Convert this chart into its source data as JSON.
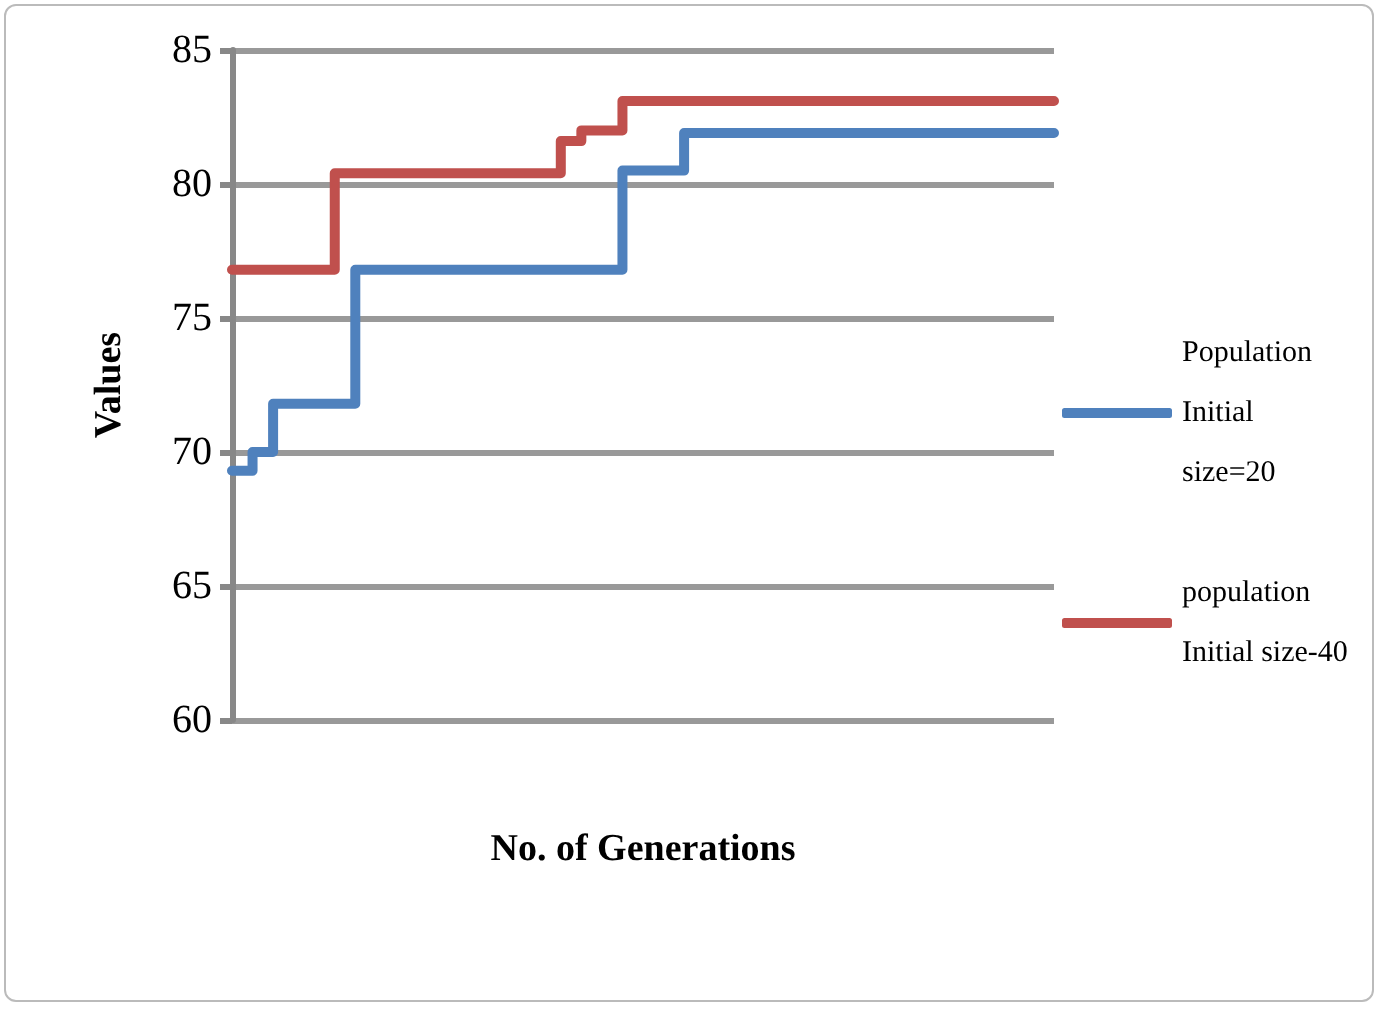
{
  "chart_data": {
    "type": "step",
    "xlabel": "No. of Generations",
    "ylabel": "Values",
    "categories": [
      null,
      null,
      null,
      null,
      null,
      null,
      null,
      null,
      null,
      null,
      null,
      null,
      null,
      null,
      null,
      null,
      null,
      null,
      null,
      null,
      null,
      null,
      null,
      null,
      null,
      null,
      null,
      null,
      null,
      null,
      null,
      null,
      null,
      null,
      null,
      null,
      null,
      null,
      null,
      null,
      null
    ],
    "series": [
      {
        "name": "Population Initial size=20",
        "color": "#4f81bd",
        "values": [
          69.3,
          70.0,
          71.8,
          71.8,
          71.8,
          71.8,
          76.8,
          76.8,
          76.8,
          76.8,
          76.8,
          76.8,
          76.8,
          76.8,
          76.8,
          76.8,
          76.8,
          76.8,
          76.8,
          80.5,
          80.5,
          80.5,
          81.9,
          81.9,
          81.9,
          81.9,
          81.9,
          81.9,
          81.9,
          81.9,
          81.9,
          81.9,
          81.9,
          81.9,
          81.9,
          81.9,
          81.9,
          81.9,
          81.9,
          81.9,
          81.9
        ]
      },
      {
        "name": "population Initial size-40",
        "color": "#c0504d",
        "values": [
          76.8,
          76.8,
          76.8,
          76.8,
          76.8,
          80.4,
          80.4,
          80.4,
          80.4,
          80.4,
          80.4,
          80.4,
          80.4,
          80.4,
          80.4,
          80.4,
          81.6,
          82.0,
          82.0,
          83.1,
          83.1,
          83.1,
          83.1,
          83.1,
          83.1,
          83.1,
          83.1,
          83.1,
          83.1,
          83.1,
          83.1,
          83.1,
          83.1,
          83.1,
          83.1,
          83.1,
          83.1,
          83.1,
          83.1,
          83.1,
          83.1
        ]
      }
    ],
    "ylim": [
      60,
      85
    ],
    "yticks": [
      60,
      65,
      70,
      75,
      80,
      85
    ],
    "grid": "y",
    "legend": "right",
    "marker": "none",
    "line_style": "solid"
  }
}
